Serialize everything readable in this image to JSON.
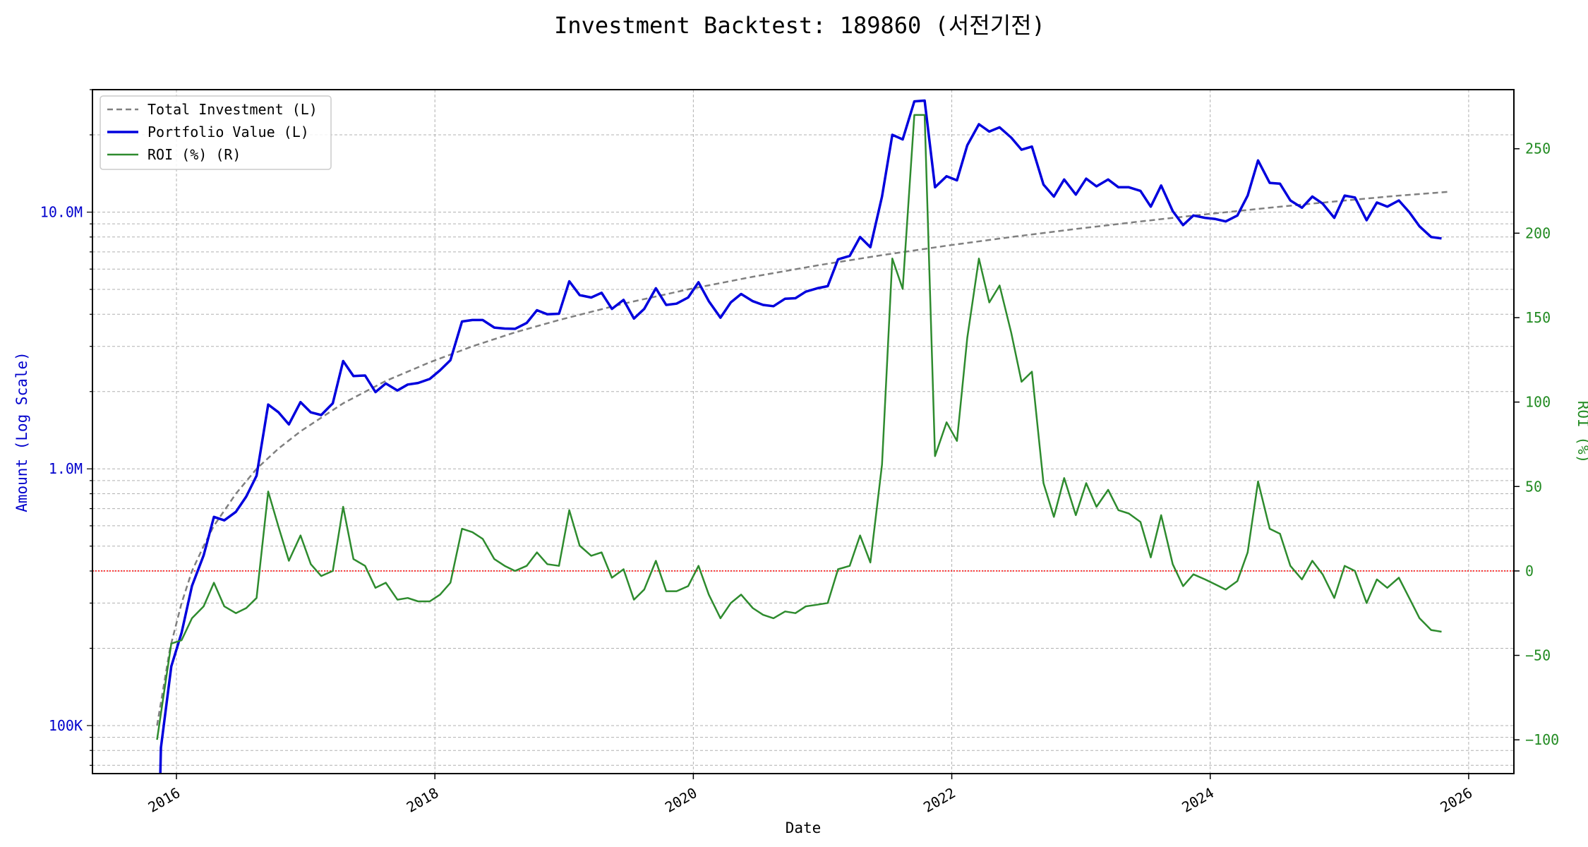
{
  "chart_data": {
    "type": "line",
    "title": "Investment Backtest: 189860 (서전기전)",
    "xlabel": "Date",
    "ylabel_left": "Amount (Log Scale)",
    "ylabel_right": "ROI (%)",
    "x_ticks": [
      "2016",
      "2018",
      "2020",
      "2022",
      "2024",
      "2026"
    ],
    "x_tick_values": [
      2016.0,
      2018.0,
      2020.0,
      2022.0,
      2024.0,
      2026.0
    ],
    "xlim": [
      2015.35,
      2026.35
    ],
    "left_axis": {
      "scale": "log",
      "ylim": [
        65000,
        30000000
      ],
      "ticks": [
        100000,
        1000000,
        10000000
      ],
      "tick_labels": [
        "100K",
        "1.0M",
        "10.0M"
      ]
    },
    "right_axis": {
      "scale": "linear",
      "ylim": [
        -120,
        285
      ],
      "ticks": [
        -100,
        -50,
        0,
        50,
        100,
        150,
        200,
        250
      ],
      "tick_labels": [
        "−100",
        "−50",
        "0",
        "50",
        "100",
        "150",
        "200",
        "250"
      ]
    },
    "zero_line": {
      "axis": "right",
      "value": 0,
      "color": "#ff0000",
      "style": "dotted"
    },
    "grid": true,
    "legend_position": "top-left",
    "colors": {
      "left_axis": "#0000cc",
      "right_axis": "#228b22",
      "investment": "#808080",
      "portfolio": "#0000dd",
      "roi": "#2e8b2e"
    },
    "series": [
      {
        "name": "Total Investment (L)",
        "axis": "left",
        "style": "dashed",
        "color": "#808080",
        "points": [
          [
            2015.85,
            100000
          ],
          [
            2015.95,
            200000
          ],
          [
            2016.04,
            300000
          ],
          [
            2016.12,
            400000
          ],
          [
            2016.21,
            500000
          ],
          [
            2016.29,
            600000
          ],
          [
            2016.46,
            800000
          ],
          [
            2016.62,
            1000000
          ],
          [
            2016.79,
            1200000
          ],
          [
            2016.96,
            1400000
          ],
          [
            2017.29,
            1800000
          ],
          [
            2017.62,
            2200000
          ],
          [
            2017.96,
            2600000
          ],
          [
            2018.29,
            3000000
          ],
          [
            2018.62,
            3400000
          ],
          [
            2018.96,
            3800000
          ],
          [
            2019.46,
            4400000
          ],
          [
            2019.96,
            5000000
          ],
          [
            2020.46,
            5600000
          ],
          [
            2020.96,
            6200000
          ],
          [
            2021.46,
            6800000
          ],
          [
            2021.96,
            7400000
          ],
          [
            2022.46,
            8000000
          ],
          [
            2022.96,
            8600000
          ],
          [
            2023.46,
            9200000
          ],
          [
            2023.96,
            9800000
          ],
          [
            2024.46,
            10400000
          ],
          [
            2024.96,
            11000000
          ],
          [
            2025.46,
            11600000
          ],
          [
            2025.85,
            12000000
          ]
        ]
      },
      {
        "name": "Portfolio Value (L)",
        "axis": "left",
        "style": "solid",
        "color": "#0000dd",
        "points": [
          [
            2015.87,
            50000
          ],
          [
            2015.88,
            82000
          ],
          [
            2015.96,
            170000
          ],
          [
            2016.04,
            230000
          ],
          [
            2016.12,
            350000
          ],
          [
            2016.21,
            460000
          ],
          [
            2016.29,
            650000
          ],
          [
            2016.37,
            630000
          ],
          [
            2016.46,
            680000
          ],
          [
            2016.54,
            780000
          ],
          [
            2016.62,
            940000
          ],
          [
            2016.71,
            1780000
          ],
          [
            2016.79,
            1660000
          ],
          [
            2016.87,
            1490000
          ],
          [
            2016.96,
            1820000
          ],
          [
            2017.04,
            1660000
          ],
          [
            2017.12,
            1620000
          ],
          [
            2017.21,
            1800000
          ],
          [
            2017.29,
            2630000
          ],
          [
            2017.37,
            2300000
          ],
          [
            2017.46,
            2310000
          ],
          [
            2017.54,
            1990000
          ],
          [
            2017.62,
            2150000
          ],
          [
            2017.71,
            2020000
          ],
          [
            2017.79,
            2130000
          ],
          [
            2017.87,
            2160000
          ],
          [
            2017.96,
            2240000
          ],
          [
            2018.04,
            2420000
          ],
          [
            2018.12,
            2650000
          ],
          [
            2018.21,
            3750000
          ],
          [
            2018.29,
            3800000
          ],
          [
            2018.37,
            3800000
          ],
          [
            2018.46,
            3550000
          ],
          [
            2018.54,
            3520000
          ],
          [
            2018.62,
            3510000
          ],
          [
            2018.71,
            3700000
          ],
          [
            2018.79,
            4150000
          ],
          [
            2018.87,
            4000000
          ],
          [
            2018.96,
            4020000
          ],
          [
            2019.04,
            5380000
          ],
          [
            2019.12,
            4750000
          ],
          [
            2019.21,
            4650000
          ],
          [
            2019.29,
            4850000
          ],
          [
            2019.37,
            4200000
          ],
          [
            2019.46,
            4550000
          ],
          [
            2019.54,
            3850000
          ],
          [
            2019.62,
            4200000
          ],
          [
            2019.71,
            5050000
          ],
          [
            2019.79,
            4350000
          ],
          [
            2019.87,
            4400000
          ],
          [
            2019.96,
            4650000
          ],
          [
            2020.04,
            5330000
          ],
          [
            2020.12,
            4500000
          ],
          [
            2020.21,
            3880000
          ],
          [
            2020.29,
            4450000
          ],
          [
            2020.37,
            4800000
          ],
          [
            2020.46,
            4500000
          ],
          [
            2020.54,
            4350000
          ],
          [
            2020.62,
            4300000
          ],
          [
            2020.71,
            4600000
          ],
          [
            2020.79,
            4620000
          ],
          [
            2020.87,
            4900000
          ],
          [
            2020.96,
            5050000
          ],
          [
            2021.04,
            5150000
          ],
          [
            2021.12,
            6550000
          ],
          [
            2021.21,
            6750000
          ],
          [
            2021.29,
            8000000
          ],
          [
            2021.37,
            7300000
          ],
          [
            2021.46,
            11500000
          ],
          [
            2021.54,
            20000000
          ],
          [
            2021.62,
            19200000
          ],
          [
            2021.71,
            27000000
          ],
          [
            2021.79,
            27200000
          ],
          [
            2021.87,
            12500000
          ],
          [
            2021.96,
            13800000
          ],
          [
            2022.04,
            13300000
          ],
          [
            2022.12,
            18200000
          ],
          [
            2022.21,
            22000000
          ],
          [
            2022.29,
            20600000
          ],
          [
            2022.37,
            21400000
          ],
          [
            2022.46,
            19500000
          ],
          [
            2022.54,
            17500000
          ],
          [
            2022.62,
            18000000
          ],
          [
            2022.71,
            12800000
          ],
          [
            2022.79,
            11500000
          ],
          [
            2022.87,
            13400000
          ],
          [
            2022.96,
            11700000
          ],
          [
            2023.04,
            13500000
          ],
          [
            2023.12,
            12600000
          ],
          [
            2023.21,
            13400000
          ],
          [
            2023.29,
            12500000
          ],
          [
            2023.37,
            12500000
          ],
          [
            2023.46,
            12100000
          ],
          [
            2023.54,
            10500000
          ],
          [
            2023.62,
            12700000
          ],
          [
            2023.71,
            10100000
          ],
          [
            2023.79,
            8900000
          ],
          [
            2023.87,
            9700000
          ],
          [
            2023.96,
            9500000
          ],
          [
            2024.04,
            9400000
          ],
          [
            2024.12,
            9200000
          ],
          [
            2024.21,
            9700000
          ],
          [
            2024.29,
            11600000
          ],
          [
            2024.37,
            15900000
          ],
          [
            2024.46,
            13000000
          ],
          [
            2024.54,
            12900000
          ],
          [
            2024.62,
            11100000
          ],
          [
            2024.71,
            10400000
          ],
          [
            2024.79,
            11500000
          ],
          [
            2024.87,
            10800000
          ],
          [
            2024.96,
            9500000
          ],
          [
            2025.04,
            11600000
          ],
          [
            2025.12,
            11400000
          ],
          [
            2025.21,
            9300000
          ],
          [
            2025.29,
            10900000
          ],
          [
            2025.37,
            10500000
          ],
          [
            2025.46,
            11100000
          ],
          [
            2025.54,
            10000000
          ],
          [
            2025.62,
            8800000
          ],
          [
            2025.71,
            8000000
          ],
          [
            2025.79,
            7900000
          ]
        ]
      },
      {
        "name": "ROI (%) (R)",
        "axis": "right",
        "style": "solid",
        "color": "#2e8b2e",
        "points": [
          [
            2015.85,
            -100
          ],
          [
            2015.96,
            -43
          ],
          [
            2016.04,
            -41
          ],
          [
            2016.12,
            -28
          ],
          [
            2016.21,
            -21
          ],
          [
            2016.29,
            -7
          ],
          [
            2016.37,
            -21
          ],
          [
            2016.46,
            -25
          ],
          [
            2016.54,
            -22
          ],
          [
            2016.62,
            -16
          ],
          [
            2016.71,
            47
          ],
          [
            2016.79,
            26
          ],
          [
            2016.87,
            6
          ],
          [
            2016.96,
            21
          ],
          [
            2017.04,
            4
          ],
          [
            2017.12,
            -3
          ],
          [
            2017.21,
            0
          ],
          [
            2017.29,
            38
          ],
          [
            2017.37,
            7
          ],
          [
            2017.46,
            3
          ],
          [
            2017.54,
            -10
          ],
          [
            2017.62,
            -7
          ],
          [
            2017.71,
            -17
          ],
          [
            2017.79,
            -16
          ],
          [
            2017.87,
            -18
          ],
          [
            2017.96,
            -18
          ],
          [
            2018.04,
            -14
          ],
          [
            2018.12,
            -7
          ],
          [
            2018.21,
            25
          ],
          [
            2018.29,
            23
          ],
          [
            2018.37,
            19
          ],
          [
            2018.46,
            7
          ],
          [
            2018.54,
            3
          ],
          [
            2018.62,
            0
          ],
          [
            2018.71,
            3
          ],
          [
            2018.79,
            11
          ],
          [
            2018.87,
            4
          ],
          [
            2018.96,
            3
          ],
          [
            2019.04,
            36
          ],
          [
            2019.12,
            15
          ],
          [
            2019.21,
            9
          ],
          [
            2019.29,
            11
          ],
          [
            2019.37,
            -4
          ],
          [
            2019.46,
            1
          ],
          [
            2019.54,
            -17
          ],
          [
            2019.62,
            -11
          ],
          [
            2019.71,
            6
          ],
          [
            2019.79,
            -12
          ],
          [
            2019.87,
            -12
          ],
          [
            2019.96,
            -9
          ],
          [
            2020.04,
            3
          ],
          [
            2020.12,
            -14
          ],
          [
            2020.21,
            -28
          ],
          [
            2020.29,
            -19
          ],
          [
            2020.37,
            -14
          ],
          [
            2020.46,
            -22
          ],
          [
            2020.54,
            -26
          ],
          [
            2020.62,
            -28
          ],
          [
            2020.71,
            -24
          ],
          [
            2020.79,
            -25
          ],
          [
            2020.87,
            -21
          ],
          [
            2020.96,
            -20
          ],
          [
            2021.04,
            -19
          ],
          [
            2021.12,
            1
          ],
          [
            2021.21,
            3
          ],
          [
            2021.29,
            21
          ],
          [
            2021.37,
            5
          ],
          [
            2021.46,
            63
          ],
          [
            2021.54,
            185
          ],
          [
            2021.62,
            167
          ],
          [
            2021.71,
            270
          ],
          [
            2021.79,
            270
          ],
          [
            2021.87,
            68
          ],
          [
            2021.96,
            88
          ],
          [
            2022.04,
            77
          ],
          [
            2022.12,
            138
          ],
          [
            2022.21,
            185
          ],
          [
            2022.29,
            159
          ],
          [
            2022.37,
            169
          ],
          [
            2022.46,
            141
          ],
          [
            2022.54,
            112
          ],
          [
            2022.62,
            118
          ],
          [
            2022.71,
            52
          ],
          [
            2022.79,
            32
          ],
          [
            2022.87,
            55
          ],
          [
            2022.96,
            33
          ],
          [
            2023.04,
            52
          ],
          [
            2023.12,
            38
          ],
          [
            2023.21,
            48
          ],
          [
            2023.29,
            36
          ],
          [
            2023.37,
            34
          ],
          [
            2023.46,
            29
          ],
          [
            2023.54,
            8
          ],
          [
            2023.62,
            33
          ],
          [
            2023.71,
            4
          ],
          [
            2023.79,
            -9
          ],
          [
            2023.87,
            -2
          ],
          [
            2023.96,
            -5
          ],
          [
            2024.04,
            -8
          ],
          [
            2024.12,
            -11
          ],
          [
            2024.21,
            -6
          ],
          [
            2024.29,
            11
          ],
          [
            2024.37,
            53
          ],
          [
            2024.46,
            25
          ],
          [
            2024.54,
            22
          ],
          [
            2024.62,
            3
          ],
          [
            2024.71,
            -5
          ],
          [
            2024.79,
            6
          ],
          [
            2024.87,
            -2
          ],
          [
            2024.96,
            -16
          ],
          [
            2025.04,
            3
          ],
          [
            2025.12,
            0
          ],
          [
            2025.21,
            -19
          ],
          [
            2025.29,
            -5
          ],
          [
            2025.37,
            -10
          ],
          [
            2025.46,
            -4
          ],
          [
            2025.54,
            -16
          ],
          [
            2025.62,
            -28
          ],
          [
            2025.71,
            -35
          ],
          [
            2025.79,
            -36
          ]
        ]
      }
    ]
  }
}
